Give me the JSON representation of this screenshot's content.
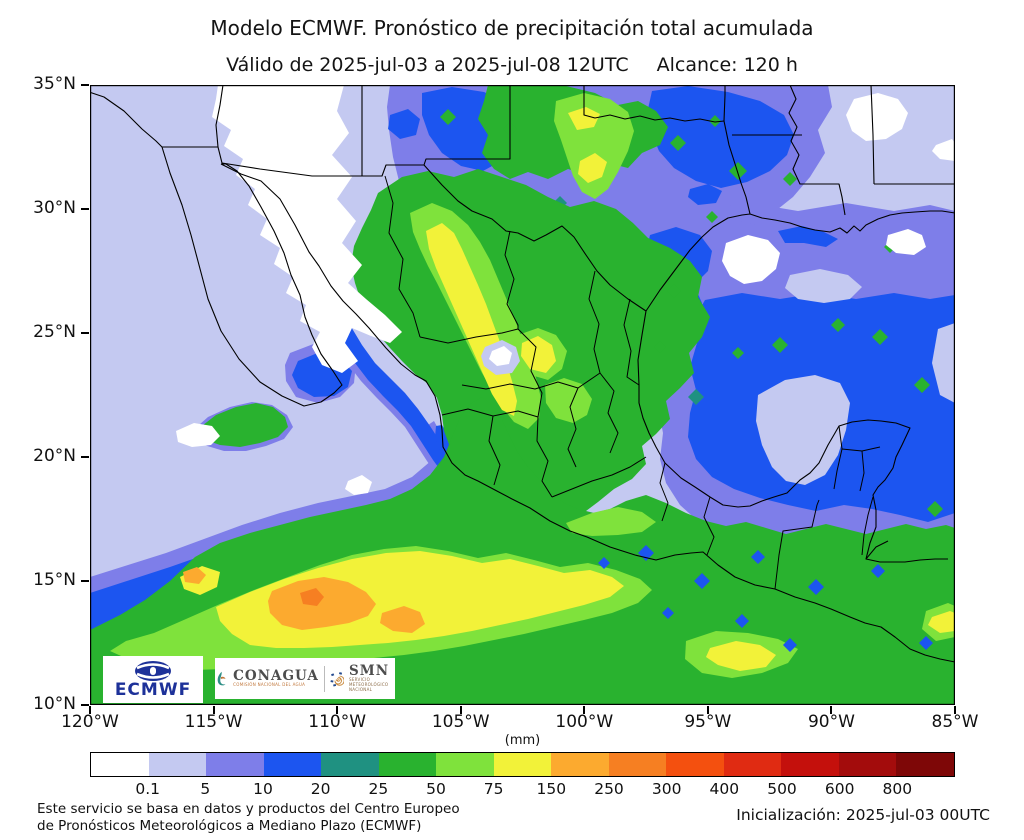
{
  "header": {
    "title": "Modelo ECMWF. Pronóstico de precipitación total acumulada",
    "valid_text": "Válido de 2025-jul-03 a 2025-jul-08 12UTC",
    "alcance_text": "Alcance: 120 h"
  },
  "axes": {
    "lat_labels": [
      "35°N",
      "30°N",
      "25°N",
      "20°N",
      "15°N",
      "10°N"
    ],
    "lon_labels": [
      "120°W",
      "115°W",
      "110°W",
      "105°W",
      "100°W",
      "95°W",
      "90°W",
      "85°W"
    ]
  },
  "colorbar": {
    "unit_label": "(mm)",
    "tick_labels": [
      "0.1",
      "5",
      "10",
      "20",
      "25",
      "50",
      "75",
      "150",
      "250",
      "300",
      "400",
      "500",
      "600",
      "800"
    ],
    "colors": [
      "#ffffff",
      "#c4c9f1",
      "#7e7ee9",
      "#1c55f0",
      "#1f9181",
      "#29b22f",
      "#7fe23c",
      "#f2f239",
      "#fcaa2f",
      "#f67f22",
      "#f4500f",
      "#e02b12",
      "#c4100c",
      "#a30c0c",
      "#7e0707"
    ]
  },
  "legend_scale_mm": [
    0.1,
    5,
    10,
    20,
    25,
    50,
    75,
    150,
    250,
    300,
    400,
    500,
    600,
    800
  ],
  "logos": {
    "ecmwf": "ECMWF",
    "conagua": "CONAGUA",
    "conagua_subtitle": "COMISIÓN NACIONAL DEL AGUA",
    "smn": "SMN",
    "smn_subtitle": "SERVICIO METEOROLÓGICO NACIONAL"
  },
  "footer": {
    "source_line1": "Este servicio se basa en datos y productos del Centro Europeo",
    "source_line2": "de Pronósticos Meteorológicos a Mediano Plazo (ECMWF)",
    "initialization": "Inicialización: 2025-jul-03 00UTC"
  }
}
